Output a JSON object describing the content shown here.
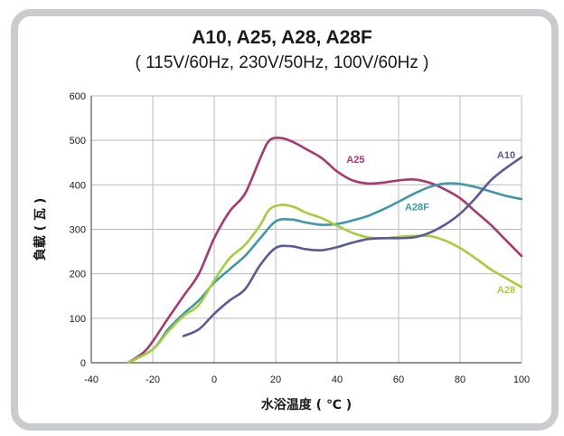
{
  "chart_data": {
    "type": "line",
    "title": "A10, A25, A28, A28F",
    "subtitle": "( 115V/60Hz, 230V/50Hz, 100V/60Hz )",
    "xlabel": "水浴温度 ( ℃ )",
    "ylabel": "負載 ( 瓦 )",
    "xlim": [
      -40,
      100
    ],
    "ylim": [
      0,
      600
    ],
    "xticks": [
      -40,
      -20,
      0,
      20,
      40,
      60,
      80,
      100
    ],
    "yticks": [
      0,
      100,
      200,
      300,
      400,
      500,
      600
    ],
    "grid": true,
    "legend": "inline labels",
    "series": [
      {
        "name": "A25",
        "color": "#a8386e",
        "x": [
          -28,
          -22,
          -15,
          -10,
          -5,
          0,
          5,
          10,
          15,
          18,
          22,
          26,
          30,
          35,
          40,
          45,
          50,
          55,
          60,
          65,
          70,
          75,
          80,
          85,
          90,
          95,
          100
        ],
        "y": [
          0,
          30,
          100,
          150,
          200,
          280,
          340,
          380,
          460,
          500,
          505,
          495,
          480,
          460,
          430,
          410,
          403,
          405,
          410,
          412,
          405,
          390,
          370,
          340,
          310,
          275,
          240
        ]
      },
      {
        "name": "A28F",
        "color": "#3f98a9",
        "x": [
          -28,
          -20,
          -15,
          -10,
          -5,
          0,
          5,
          10,
          15,
          20,
          25,
          30,
          35,
          40,
          45,
          50,
          55,
          60,
          65,
          70,
          75,
          80,
          85,
          90,
          95,
          100
        ],
        "y": [
          0,
          30,
          75,
          110,
          140,
          180,
          210,
          240,
          280,
          318,
          322,
          315,
          310,
          312,
          320,
          330,
          345,
          362,
          380,
          395,
          403,
          402,
          395,
          385,
          375,
          368
        ]
      },
      {
        "name": "A28",
        "color": "#a6cd3a",
        "x": [
          -28,
          -20,
          -15,
          -10,
          -5,
          0,
          5,
          10,
          15,
          18,
          22,
          26,
          30,
          35,
          40,
          45,
          50,
          55,
          60,
          65,
          70,
          75,
          80,
          85,
          90,
          95,
          100
        ],
        "y": [
          0,
          30,
          70,
          105,
          130,
          185,
          235,
          265,
          310,
          345,
          355,
          350,
          337,
          325,
          308,
          292,
          282,
          280,
          283,
          285,
          285,
          275,
          258,
          235,
          210,
          190,
          170
        ]
      },
      {
        "name": "A10",
        "color": "#5a5a99",
        "x": [
          -10,
          -5,
          0,
          5,
          10,
          15,
          20,
          25,
          30,
          35,
          40,
          45,
          50,
          55,
          60,
          65,
          70,
          75,
          80,
          85,
          90,
          95,
          100
        ],
        "y": [
          60,
          75,
          110,
          140,
          165,
          220,
          258,
          262,
          255,
          253,
          260,
          270,
          278,
          280,
          280,
          282,
          292,
          310,
          335,
          370,
          410,
          438,
          462
        ]
      }
    ],
    "annotations": [
      {
        "text": "A25",
        "x": 46,
        "y": 450,
        "color": "#a8386e"
      },
      {
        "text": "A28F",
        "x": 66,
        "y": 343,
        "color": "#3f98a9"
      },
      {
        "text": "A28",
        "x": 95,
        "y": 157,
        "color": "#a6cd3a"
      },
      {
        "text": "A10",
        "x": 95,
        "y": 460,
        "color": "#5a5a99"
      }
    ]
  }
}
